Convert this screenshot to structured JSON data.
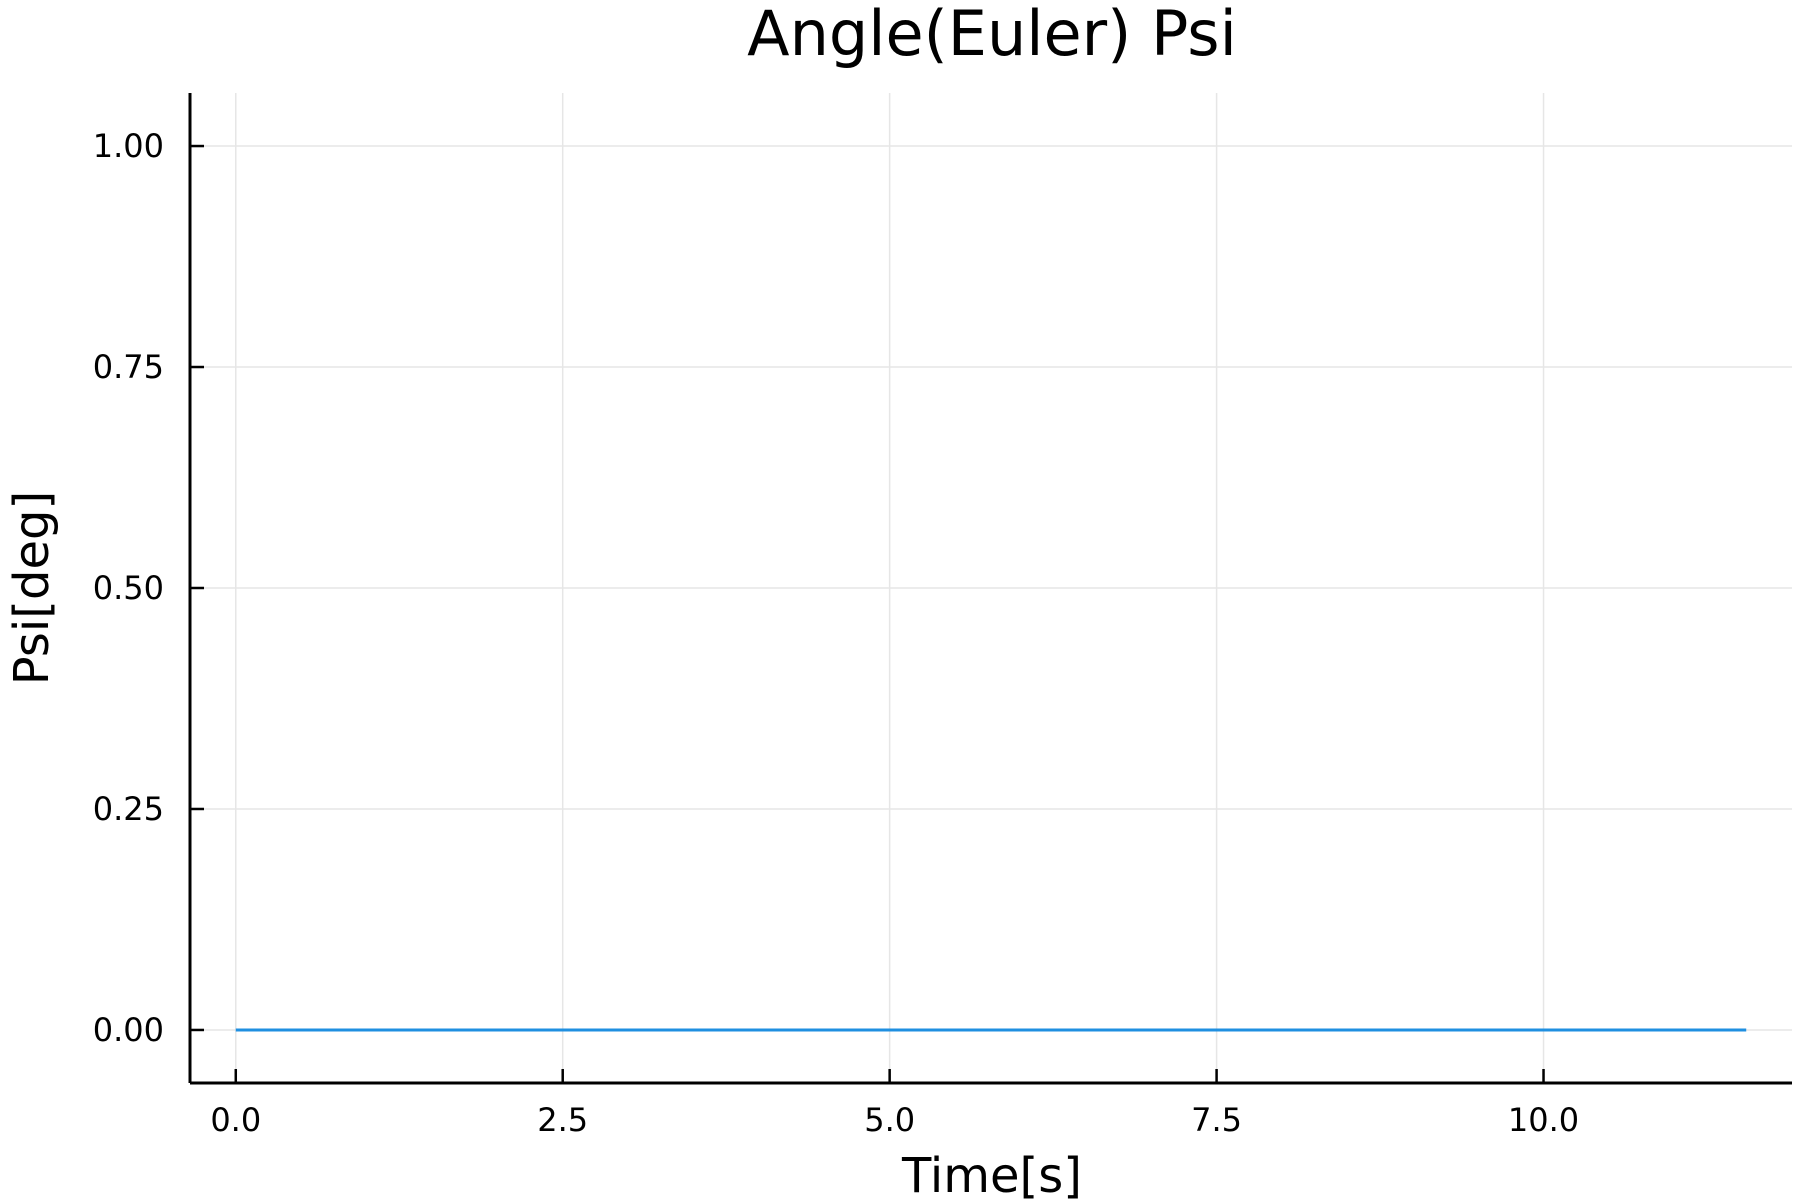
{
  "chart_data": {
    "type": "line",
    "title": "Angle(Euler) Psi",
    "xlabel": "Time[s]",
    "ylabel": "Psi[deg]",
    "xlim": [
      -0.35,
      11.9
    ],
    "ylim": [
      -0.06,
      1.06
    ],
    "xticks": [
      0.0,
      2.5,
      5.0,
      7.5,
      10.0
    ],
    "xtick_labels": [
      "0.0",
      "2.5",
      "5.0",
      "7.5",
      "10.0"
    ],
    "yticks": [
      0.0,
      0.25,
      0.5,
      0.75,
      1.0
    ],
    "ytick_labels": [
      "0.00",
      "0.25",
      "0.50",
      "0.75",
      "1.00"
    ],
    "grid": true,
    "legend": "none",
    "series": [
      {
        "color": "#1f8fe0",
        "x": [
          0.0,
          1.0,
          2.0,
          3.0,
          4.0,
          5.0,
          6.0,
          7.0,
          8.0,
          9.0,
          10.0,
          11.0,
          11.55
        ],
        "y": [
          0,
          0,
          0,
          0,
          0,
          0,
          0,
          0,
          0,
          0,
          0,
          0,
          0
        ]
      }
    ]
  }
}
